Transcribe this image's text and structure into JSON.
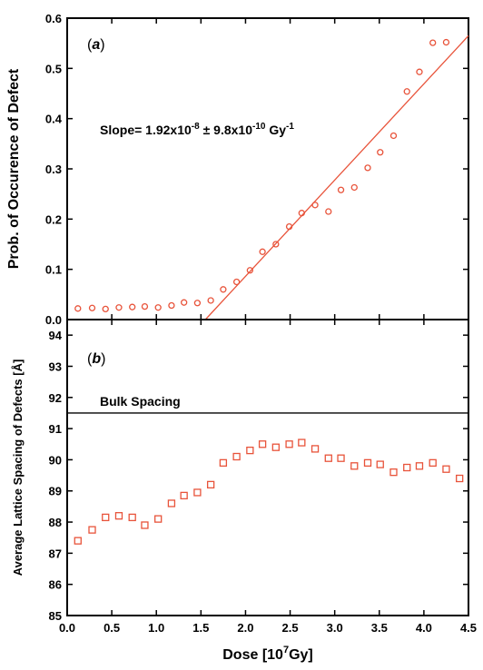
{
  "colors": {
    "marker": "#e8533a",
    "fit_line": "#e8533a",
    "axis": "#000000",
    "reference_line": "#000000"
  },
  "chart_data": [
    {
      "type": "scatter",
      "panel_label": "a",
      "xlabel_main": "Dose [10",
      "xlabel_exp": "7",
      "xlabel_tail": "Gy]",
      "ylabel": "Prob. of Occurence of Defect",
      "xlim": [
        0,
        4.5
      ],
      "ylim": [
        0,
        0.6
      ],
      "x_ticks": [
        "0.0",
        "0.5",
        "1.0",
        "1.5",
        "2.0",
        "2.5",
        "3.0",
        "3.5",
        "4.0",
        "4.5"
      ],
      "y_ticks": [
        "0.0",
        "0.1",
        "0.2",
        "0.3",
        "0.4",
        "0.5",
        "0.6"
      ],
      "marker": "circle",
      "annotation": {
        "prefix": "Slope= 1.92x10",
        "exp1": "-8",
        "middle": " ± 9.8x10",
        "exp2": "-10",
        "unit": " Gy",
        "exp3": "-1"
      },
      "fit_line": {
        "x": [
          1.55,
          4.5
        ],
        "y": [
          0.0,
          0.565
        ]
      },
      "points": [
        {
          "x": 0.12,
          "y": 0.022
        },
        {
          "x": 0.28,
          "y": 0.023
        },
        {
          "x": 0.43,
          "y": 0.021
        },
        {
          "x": 0.58,
          "y": 0.024
        },
        {
          "x": 0.73,
          "y": 0.025
        },
        {
          "x": 0.87,
          "y": 0.026
        },
        {
          "x": 1.02,
          "y": 0.024
        },
        {
          "x": 1.17,
          "y": 0.028
        },
        {
          "x": 1.31,
          "y": 0.034
        },
        {
          "x": 1.46,
          "y": 0.033
        },
        {
          "x": 1.61,
          "y": 0.038
        },
        {
          "x": 1.75,
          "y": 0.06
        },
        {
          "x": 1.9,
          "y": 0.075
        },
        {
          "x": 2.05,
          "y": 0.098
        },
        {
          "x": 2.19,
          "y": 0.135
        },
        {
          "x": 2.34,
          "y": 0.15
        },
        {
          "x": 2.49,
          "y": 0.185
        },
        {
          "x": 2.63,
          "y": 0.212
        },
        {
          "x": 2.78,
          "y": 0.228
        },
        {
          "x": 2.93,
          "y": 0.215
        },
        {
          "x": 3.07,
          "y": 0.258
        },
        {
          "x": 3.22,
          "y": 0.263
        },
        {
          "x": 3.37,
          "y": 0.302
        },
        {
          "x": 3.51,
          "y": 0.333
        },
        {
          "x": 3.66,
          "y": 0.366
        },
        {
          "x": 3.81,
          "y": 0.454
        },
        {
          "x": 3.95,
          "y": 0.493
        },
        {
          "x": 4.1,
          "y": 0.551
        },
        {
          "x": 4.25,
          "y": 0.552
        }
      ]
    },
    {
      "type": "scatter",
      "panel_label": "b",
      "ylabel": "Average Lattice Spacing of Defects [Å]",
      "xlim": [
        0,
        4.5
      ],
      "ylim": [
        85,
        94.5
      ],
      "x_ticks": [
        "0.0",
        "0.5",
        "1.0",
        "1.5",
        "2.0",
        "2.5",
        "3.0",
        "3.5",
        "4.0",
        "4.5"
      ],
      "y_ticks": [
        "85",
        "86",
        "87",
        "88",
        "89",
        "90",
        "91",
        "92",
        "93",
        "94"
      ],
      "marker": "square",
      "reference_line": {
        "y": 91.5,
        "label": "Bulk Spacing"
      },
      "points": [
        {
          "x": 0.12,
          "y": 87.4
        },
        {
          "x": 0.28,
          "y": 87.75
        },
        {
          "x": 0.43,
          "y": 88.15
        },
        {
          "x": 0.58,
          "y": 88.2
        },
        {
          "x": 0.73,
          "y": 88.15
        },
        {
          "x": 0.87,
          "y": 87.9
        },
        {
          "x": 1.02,
          "y": 88.1
        },
        {
          "x": 1.17,
          "y": 88.6
        },
        {
          "x": 1.31,
          "y": 88.85
        },
        {
          "x": 1.46,
          "y": 88.95
        },
        {
          "x": 1.61,
          "y": 89.2
        },
        {
          "x": 1.75,
          "y": 89.9
        },
        {
          "x": 1.9,
          "y": 90.1
        },
        {
          "x": 2.05,
          "y": 90.3
        },
        {
          "x": 2.19,
          "y": 90.5
        },
        {
          "x": 2.34,
          "y": 90.4
        },
        {
          "x": 2.49,
          "y": 90.5
        },
        {
          "x": 2.63,
          "y": 90.55
        },
        {
          "x": 2.78,
          "y": 90.35
        },
        {
          "x": 2.93,
          "y": 90.05
        },
        {
          "x": 3.07,
          "y": 90.05
        },
        {
          "x": 3.22,
          "y": 89.8
        },
        {
          "x": 3.37,
          "y": 89.9
        },
        {
          "x": 3.51,
          "y": 89.85
        },
        {
          "x": 3.66,
          "y": 89.6
        },
        {
          "x": 3.81,
          "y": 89.75
        },
        {
          "x": 3.95,
          "y": 89.8
        },
        {
          "x": 4.1,
          "y": 89.9
        },
        {
          "x": 4.25,
          "y": 89.7
        },
        {
          "x": 4.4,
          "y": 89.4
        }
      ]
    }
  ]
}
